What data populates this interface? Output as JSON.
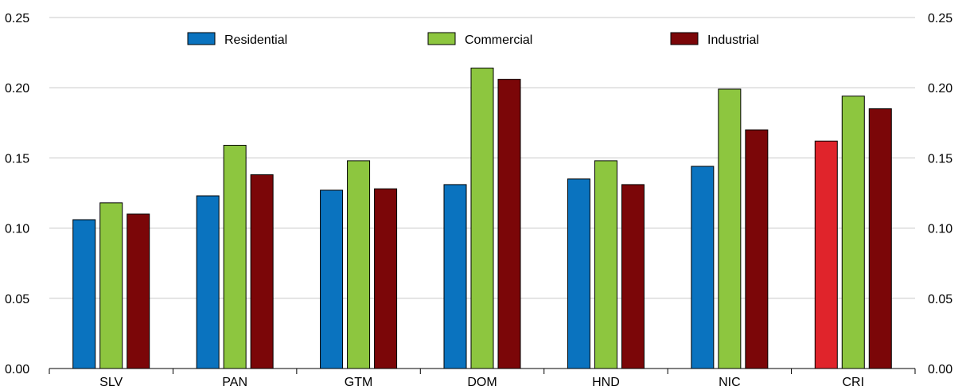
{
  "chart_data": {
    "type": "bar",
    "title": "",
    "xlabel": "",
    "ylabel": "",
    "ylim": [
      0,
      0.25
    ],
    "yticks": [
      "0.00",
      "0.05",
      "0.10",
      "0.15",
      "0.20",
      "0.25"
    ],
    "categories": [
      "SLV",
      "PAN",
      "GTM",
      "DOM",
      "HND",
      "NIC",
      "CRI"
    ],
    "series": [
      {
        "name": "Residential",
        "color": "#0a73bf",
        "values": [
          0.106,
          0.123,
          0.127,
          0.131,
          0.135,
          0.144,
          0.162
        ]
      },
      {
        "name": "Commercial",
        "color": "#8dc63f",
        "values": [
          0.118,
          0.159,
          0.148,
          0.214,
          0.148,
          0.199,
          0.194
        ]
      },
      {
        "name": "Industrial",
        "color": "#7b0608",
        "values": [
          0.11,
          0.138,
          0.128,
          0.206,
          0.131,
          0.17,
          0.185
        ]
      }
    ],
    "highlight": {
      "category": "CRI",
      "series": "Residential",
      "color": "#e0242b"
    },
    "grid": true,
    "secondary_y_axis": true,
    "legend_position": "top"
  }
}
